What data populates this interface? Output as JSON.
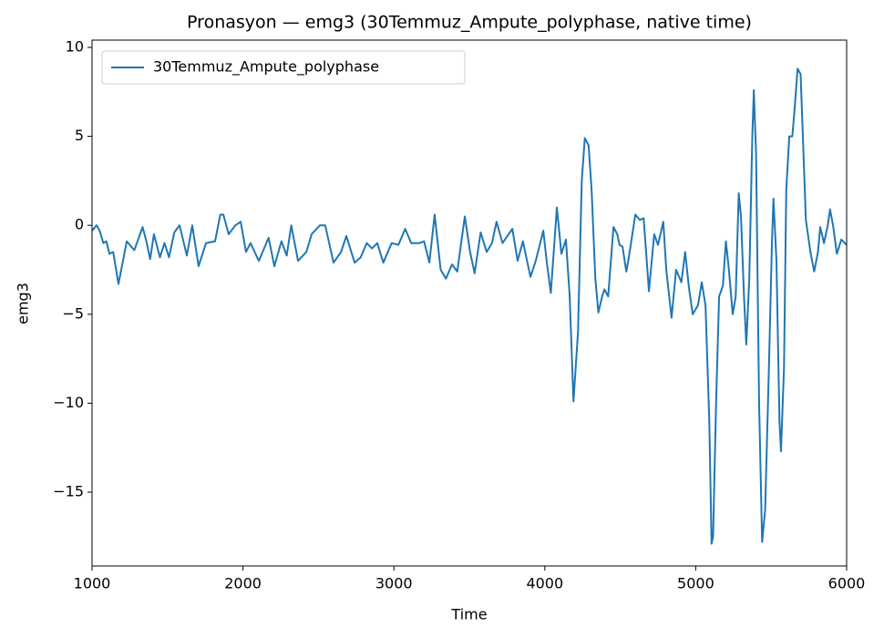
{
  "chart_data": {
    "type": "line",
    "title": "Pronasyon — emg3 (30Temmuz_Ampute_polyphase, native time)",
    "x_label": "Time",
    "y_label": "emg3",
    "xlim": [
      1000,
      6000
    ],
    "ylim": [
      -19.15,
      10.41
    ],
    "xticks": [
      1000,
      2000,
      3000,
      4000,
      5000,
      6000
    ],
    "yticks": [
      {
        "value": -15,
        "label": "−15"
      },
      {
        "value": -10,
        "label": "−10"
      },
      {
        "value": -5,
        "label": "−5"
      },
      0,
      5,
      10
    ],
    "legend": "upper left",
    "x": [
      1000,
      1030,
      1050,
      1075,
      1095,
      1115,
      1140,
      1175,
      1230,
      1280,
      1335,
      1360,
      1385,
      1410,
      1450,
      1480,
      1510,
      1545,
      1580,
      1628,
      1664,
      1706,
      1755,
      1815,
      1850,
      1870,
      1905,
      1950,
      1985,
      2020,
      2050,
      2105,
      2170,
      2208,
      2255,
      2290,
      2320,
      2365,
      2420,
      2455,
      2510,
      2545,
      2600,
      2650,
      2685,
      2740,
      2780,
      2820,
      2855,
      2890,
      2930,
      2985,
      3030,
      3075,
      3115,
      3170,
      3200,
      3235,
      3270,
      3310,
      3345,
      3385,
      3420,
      3470,
      3505,
      3535,
      3575,
      3615,
      3650,
      3680,
      3720,
      3785,
      3820,
      3855,
      3905,
      3940,
      3990,
      4015,
      4040,
      4080,
      4110,
      4140,
      4165,
      4190,
      4220,
      4245,
      4265,
      4290,
      4310,
      4335,
      4355,
      4380,
      4395,
      4420,
      4455,
      4480,
      4495,
      4515,
      4540,
      4555,
      4600,
      4630,
      4655,
      4690,
      4725,
      4750,
      4785,
      4805,
      4840,
      4870,
      4905,
      4930,
      4955,
      4980,
      5015,
      5040,
      5065,
      5090,
      5105,
      5115,
      5135,
      5155,
      5180,
      5200,
      5220,
      5245,
      5265,
      5285,
      5300,
      5320,
      5335,
      5355,
      5375,
      5385,
      5400,
      5420,
      5440,
      5460,
      5485,
      5505,
      5515,
      5535,
      5555,
      5565,
      5585,
      5600,
      5620,
      5640,
      5655,
      5675,
      5695,
      5710,
      5730,
      5760,
      5785,
      5810,
      5825,
      5850,
      5875,
      5890,
      5910,
      5935,
      5965,
      6000
    ],
    "series": [
      {
        "name": "30Temmuz_Ampute_polyphase",
        "color": "#1f77b4",
        "values": [
          -0.3,
          0.0,
          -0.3,
          -1.0,
          -0.9,
          -1.6,
          -1.5,
          -3.3,
          -0.9,
          -1.4,
          -0.1,
          -0.9,
          -1.9,
          -0.5,
          -1.8,
          -1.0,
          -1.8,
          -0.4,
          0.0,
          -1.7,
          0.0,
          -2.3,
          -1.0,
          -0.9,
          0.6,
          0.6,
          -0.5,
          0.0,
          0.2,
          -1.5,
          -1.0,
          -2.0,
          -0.7,
          -2.3,
          -0.9,
          -1.7,
          0.0,
          -2.0,
          -1.5,
          -0.5,
          0.0,
          0.0,
          -2.1,
          -1.5,
          -0.6,
          -2.1,
          -1.8,
          -1.0,
          -1.3,
          -1.0,
          -2.1,
          -1.0,
          -1.1,
          -0.2,
          -1.0,
          -1.0,
          -0.9,
          -2.1,
          0.6,
          -2.5,
          -3.0,
          -2.2,
          -2.6,
          0.5,
          -1.5,
          -2.7,
          -0.4,
          -1.5,
          -1.0,
          0.2,
          -1.0,
          -0.2,
          -2.0,
          -0.9,
          -2.9,
          -2.0,
          -0.3,
          -2.2,
          -3.8,
          1.0,
          -1.6,
          -0.8,
          -4.0,
          -9.9,
          -6.0,
          2.5,
          4.9,
          4.5,
          2.0,
          -3.0,
          -4.9,
          -4.0,
          -3.6,
          -4.0,
          -0.1,
          -0.5,
          -1.1,
          -1.2,
          -2.6,
          -1.9,
          0.6,
          0.3,
          0.4,
          -3.7,
          -0.5,
          -1.1,
          0.2,
          -2.5,
          -5.2,
          -2.5,
          -3.2,
          -1.5,
          -3.5,
          -5.0,
          -4.5,
          -3.2,
          -4.5,
          -11.0,
          -17.9,
          -17.5,
          -10.0,
          -4.0,
          -3.4,
          -0.9,
          -2.5,
          -5.0,
          -4.0,
          1.8,
          0.5,
          -4.0,
          -6.7,
          -3.0,
          5.0,
          7.6,
          4.0,
          -10.0,
          -17.8,
          -16.0,
          -8.0,
          -1.0,
          1.5,
          -2.0,
          -11.0,
          -12.7,
          -8.0,
          2.0,
          5.0,
          5.0,
          6.5,
          8.8,
          8.5,
          5.0,
          0.3,
          -1.5,
          -2.6,
          -1.5,
          -0.1,
          -1.0,
          0.0,
          0.9,
          0.0,
          -1.6,
          -0.8,
          -1.1
        ]
      }
    ]
  }
}
